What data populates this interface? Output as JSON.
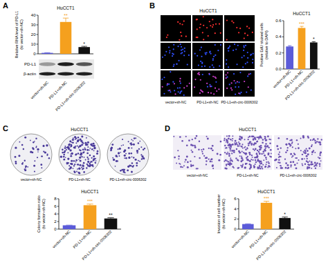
{
  "panels": [
    {
      "letter": "A"
    },
    {
      "letter": "B",
      "title": "HuCCT1",
      "image_labels": [
        "vector+sh-NC",
        "PD-L1+sh-NC",
        "PD-L1+sh-circ-0006302"
      ]
    },
    {
      "letter": "C",
      "title": "HuCCT1",
      "image_labels": [
        "vector+sh-NC",
        "PD-L1+sh-NC",
        "PD-L1+sh-circ-0006302"
      ]
    },
    {
      "letter": "D",
      "title": "HuCCT1",
      "image_labels": [
        "vector+sh-NC",
        "PD-L1+sh-NC",
        "PD-L1+sh-circ-0006302"
      ]
    }
  ],
  "blot": {
    "labels": [
      "PD-L1",
      "β-actin"
    ]
  },
  "chart_data": [
    {
      "type": "bar",
      "title": "HuCCT1",
      "y_label": [
        "Relative RNA level of PD-L1",
        "(to vector+sh-NC)"
      ],
      "categories": [
        "vector+sh-NC",
        "PD-L1+sh-NC",
        "PD-L1+sh-circ-0006302"
      ],
      "values": [
        1,
        33,
        7
      ],
      "errors": [
        0.2,
        4,
        0.8
      ],
      "annotations": [
        null,
        "**",
        "*"
      ],
      "colors": [
        "#5b5bd9",
        "#f5a01e",
        "#111111"
      ],
      "ylim": [
        0,
        40
      ],
      "yticks": [
        0,
        10,
        20,
        30,
        40
      ]
    },
    {
      "type": "bar",
      "title": "HuCCT1",
      "y_label": [
        "Positive EdU stained cells",
        "(relative to DAPI)"
      ],
      "categories": [
        "vector+sh-NC",
        "PD-L1+sh-NC",
        "PD-L1+sh-circ-0006302"
      ],
      "values": [
        0.28,
        0.51,
        0.33
      ],
      "errors": [
        0.01,
        0.02,
        0.01
      ],
      "annotations": [
        null,
        "***",
        "*"
      ],
      "colors": [
        "#5b5bd9",
        "#f5a01e",
        "#111111"
      ],
      "ylim": [
        0,
        0.6
      ],
      "yticks": [
        {
          "value": 0,
          "label": "0.0"
        },
        0.2,
        0.4,
        0.6
      ]
    },
    {
      "type": "bar",
      "title": "HuCCT1",
      "y_label": [
        "Colony formation ratio",
        "(to vector+sh-NC)"
      ],
      "categories": [
        "vector+sh-NC",
        "PD-L1+sh-NC",
        "PD-L1+sh-circ-0006302"
      ],
      "values": [
        1,
        6.3,
        2.8
      ],
      "errors": [
        0.05,
        0.3,
        0.2
      ],
      "annotations": [
        null,
        "***",
        "**"
      ],
      "colors": [
        "#5b5bd9",
        "#f5a01e",
        "#111111"
      ],
      "ylim": [
        0,
        8
      ],
      "yticks": [
        0,
        2,
        4,
        6,
        8
      ]
    },
    {
      "type": "bar",
      "title": "HuCCT1",
      "y_label": [
        "Invasion of cell number",
        "(to vector+sh-NC)"
      ],
      "categories": [
        "vector+sh-NC",
        "PD-L1+sh-NC",
        "PD-L1+sh-circ-0006302"
      ],
      "values": [
        1,
        5.2,
        2.2
      ],
      "errors": [
        0.05,
        0.3,
        0.2
      ],
      "annotations": [
        null,
        "***",
        "*"
      ],
      "colors": [
        "#5b5bd9",
        "#f5a01e",
        "#111111"
      ],
      "ylim": [
        0,
        6
      ],
      "yticks": [
        0,
        2,
        4,
        6
      ]
    }
  ]
}
